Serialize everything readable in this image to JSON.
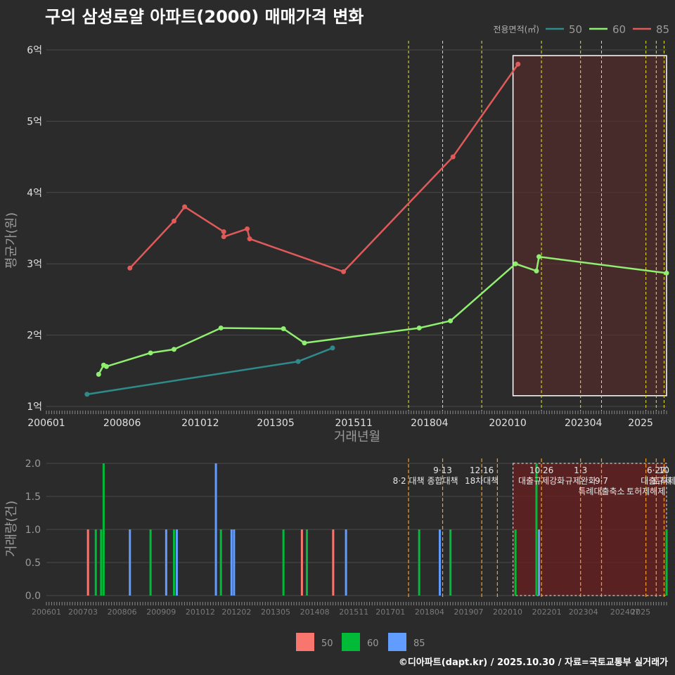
{
  "title": "구의 삼성로얄 아파트(2000) 매매가격 변화",
  "credit": "©디아파트(dapt.kr) / 2025.10.30 / 자료=국토교통부 실거래가",
  "chart_data": [
    {
      "type": "line",
      "title": "구의 삼성로얄 아파트(2000) 매매가격 변화",
      "xlabel": "거래년월",
      "ylabel": "평균가(원)",
      "xlim": [
        2006.0,
        2025.83
      ],
      "ylim": [
        1,
        6
      ],
      "x_ticks": [
        {
          "x": 2006.0,
          "label": "200601"
        },
        {
          "x": 2008.42,
          "label": "200806"
        },
        {
          "x": 2010.92,
          "label": "201012"
        },
        {
          "x": 2013.33,
          "label": "201305"
        },
        {
          "x": 2015.83,
          "label": "201511"
        },
        {
          "x": 2018.25,
          "label": "201804"
        },
        {
          "x": 2020.75,
          "label": "202010"
        },
        {
          "x": 2023.17,
          "label": "202304"
        },
        {
          "x": 2025.0,
          "label": "2025"
        }
      ],
      "y_ticks": [
        {
          "y": 1,
          "label": "1억"
        },
        {
          "y": 2,
          "label": "2억"
        },
        {
          "y": 3,
          "label": "3억"
        },
        {
          "y": 4,
          "label": "4억"
        },
        {
          "y": 5,
          "label": "5억"
        },
        {
          "y": 6,
          "label": "6억"
        }
      ],
      "legend_title": "전용면적(㎡)",
      "series": [
        {
          "name": "50",
          "color": "#2e8b8b",
          "points": [
            [
              2007.3,
              1.17
            ],
            [
              2014.05,
              1.63
            ],
            [
              2015.15,
              1.82
            ]
          ]
        },
        {
          "name": "60",
          "color": "#90ee70",
          "points": [
            [
              2007.67,
              1.45
            ],
            [
              2007.83,
              1.58
            ],
            [
              2007.92,
              1.56
            ],
            [
              2009.33,
              1.75
            ],
            [
              2010.08,
              1.8
            ],
            [
              2011.58,
              2.1
            ],
            [
              2013.58,
              2.09
            ],
            [
              2014.25,
              1.89
            ],
            [
              2017.92,
              2.1
            ],
            [
              2018.92,
              2.2
            ],
            [
              2021.0,
              3.0
            ],
            [
              2021.67,
              2.9
            ],
            [
              2021.75,
              3.1
            ],
            [
              2025.83,
              2.87
            ]
          ]
        },
        {
          "name": "85",
          "color": "#e05a5a",
          "points": [
            [
              2008.67,
              2.94
            ],
            [
              2010.08,
              3.6
            ],
            [
              2010.42,
              3.8
            ],
            [
              2011.67,
              3.45
            ],
            [
              2011.67,
              3.38
            ],
            [
              2012.42,
              3.49
            ],
            [
              2012.5,
              3.35
            ],
            [
              2015.5,
              2.89
            ],
            [
              2019.0,
              4.5
            ],
            [
              2021.08,
              5.8
            ]
          ]
        }
      ],
      "shaded_region": {
        "x": [
          2020.92,
          2025.83
        ],
        "y": [
          1.15,
          5.92
        ]
      },
      "event_lines": [
        2017.58,
        2018.67,
        2019.92,
        2021.83,
        2023.08,
        2023.75,
        2025.17,
        2025.5,
        2025.75
      ]
    },
    {
      "type": "bar",
      "ylabel": "거래량(건)",
      "xlim": [
        2006.0,
        2025.83
      ],
      "ylim": [
        0,
        2
      ],
      "y_ticks": [
        0.0,
        0.5,
        1.0,
        1.5,
        2.0
      ],
      "x_ticks": [
        {
          "x": 2006.0,
          "label": "200601"
        },
        {
          "x": 2007.17,
          "label": "200703"
        },
        {
          "x": 2008.42,
          "label": "200806"
        },
        {
          "x": 2009.67,
          "label": "200909"
        },
        {
          "x": 2010.92,
          "label": "201012"
        },
        {
          "x": 2012.08,
          "label": "201202"
        },
        {
          "x": 2013.33,
          "label": "201305"
        },
        {
          "x": 2014.58,
          "label": "201408"
        },
        {
          "x": 2015.83,
          "label": "201511"
        },
        {
          "x": 2017.0,
          "label": "201701"
        },
        {
          "x": 2018.25,
          "label": "201804"
        },
        {
          "x": 2019.5,
          "label": "201907"
        },
        {
          "x": 2020.75,
          "label": "202010"
        },
        {
          "x": 2022.0,
          "label": "202201"
        },
        {
          "x": 2023.17,
          "label": "202304"
        },
        {
          "x": 2024.5,
          "label": "202407"
        },
        {
          "x": 2025.0,
          "label": "2025"
        }
      ],
      "series": [
        {
          "name": "50",
          "color": "#f8766d",
          "bars": [
            [
              2007.33,
              1
            ],
            [
              2014.17,
              1
            ],
            [
              2015.17,
              1
            ]
          ]
        },
        {
          "name": "60",
          "color": "#00ba38",
          "bars": [
            [
              2007.58,
              1
            ],
            [
              2007.75,
              1
            ],
            [
              2007.83,
              2
            ],
            [
              2009.33,
              1
            ],
            [
              2010.08,
              1
            ],
            [
              2011.58,
              1
            ],
            [
              2013.58,
              1
            ],
            [
              2014.33,
              1
            ],
            [
              2017.92,
              1
            ],
            [
              2018.92,
              1
            ],
            [
              2021.0,
              1
            ],
            [
              2021.67,
              2
            ],
            [
              2025.83,
              1
            ]
          ]
        },
        {
          "name": "85",
          "color": "#619cff",
          "bars": [
            [
              2008.67,
              1
            ],
            [
              2009.83,
              1
            ],
            [
              2010.17,
              1
            ],
            [
              2011.42,
              2
            ],
            [
              2011.92,
              1
            ],
            [
              2012.0,
              1
            ],
            [
              2015.58,
              1
            ],
            [
              2018.58,
              1
            ],
            [
              2021.75,
              1
            ]
          ]
        }
      ],
      "legend": [
        "50",
        "60",
        "85"
      ],
      "shaded_region": {
        "x": [
          2020.92,
          2025.83
        ],
        "y": [
          0,
          2
        ]
      },
      "event_lines": [
        2017.58,
        2018.67,
        2019.92,
        2020.42,
        2021.83,
        2023.08,
        2023.75,
        2025.17,
        2025.5,
        2025.75
      ],
      "annotations": [
        {
          "x": 2017.58,
          "level": 1,
          "text": "8·2 대책"
        },
        {
          "x": 2018.67,
          "level": 0,
          "text": "9·13"
        },
        {
          "x": 2018.67,
          "level": 1,
          "text": "종합대책"
        },
        {
          "x": 2019.92,
          "level": 0,
          "text": "12·16"
        },
        {
          "x": 2019.92,
          "level": 1,
          "text": "18차대책"
        },
        {
          "x": 2021.83,
          "level": 0,
          "text": "10·26"
        },
        {
          "x": 2021.83,
          "level": 1,
          "text": "대출규제강화"
        },
        {
          "x": 2023.08,
          "level": 0,
          "text": "1·3"
        },
        {
          "x": 2023.08,
          "level": 1,
          "text": "규제완화"
        },
        {
          "x": 2023.75,
          "level": 1,
          "text": "9·7"
        },
        {
          "x": 2023.75,
          "level": 2,
          "text": "특례대출축소"
        },
        {
          "x": 2025.17,
          "level": 2,
          "text": "토허제해제"
        },
        {
          "x": 2025.5,
          "level": 0,
          "text": "6·27"
        },
        {
          "x": 2025.5,
          "level": 1,
          "text": "대출규제"
        },
        {
          "x": 2025.75,
          "level": 0,
          "text": "10"
        },
        {
          "x": 2025.75,
          "level": 1,
          "text": "토허제"
        }
      ]
    }
  ]
}
